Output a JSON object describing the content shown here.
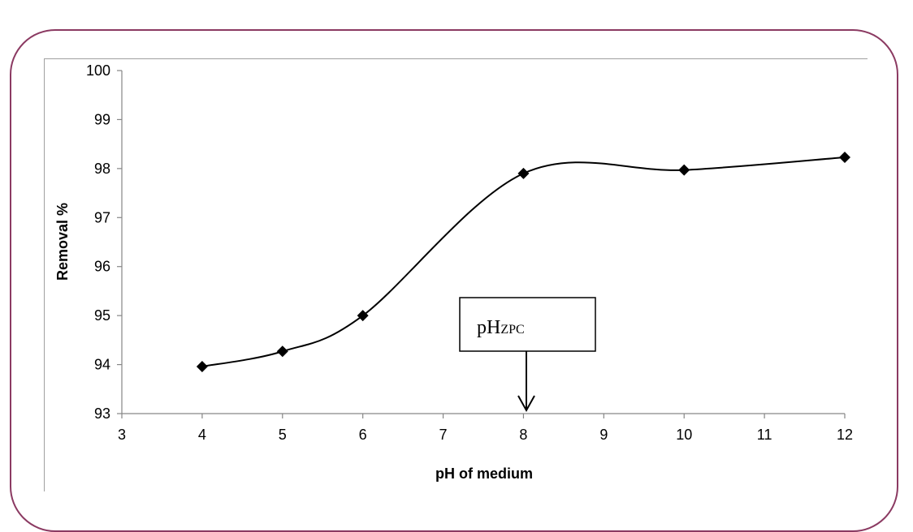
{
  "chart_data": {
    "type": "line",
    "title": "",
    "xlabel": "pH of medium",
    "ylabel": "Removal %",
    "xlim": [
      3,
      12
    ],
    "ylim": [
      93,
      100
    ],
    "xticks": [
      3,
      4,
      5,
      6,
      7,
      8,
      9,
      10,
      11,
      12
    ],
    "yticks": [
      93,
      94,
      95,
      96,
      97,
      98,
      99,
      100
    ],
    "grid": false,
    "legend": "none",
    "series": [
      {
        "marker": "diamond",
        "smooth": true,
        "color": "#000000",
        "points": [
          {
            "x": 4,
            "y": 93.96
          },
          {
            "x": 5,
            "y": 94.27
          },
          {
            "x": 6,
            "y": 95.0
          },
          {
            "x": 8,
            "y": 97.9
          },
          {
            "x": 10,
            "y": 97.97
          },
          {
            "x": 12,
            "y": 98.23
          }
        ]
      }
    ],
    "annotation": {
      "text_main": "pH",
      "text_sub": "ZPC",
      "points_to_x": 8
    }
  },
  "colors": {
    "frame_border": "#8b3a62",
    "axis_line": "#868686",
    "series": "#000000"
  }
}
